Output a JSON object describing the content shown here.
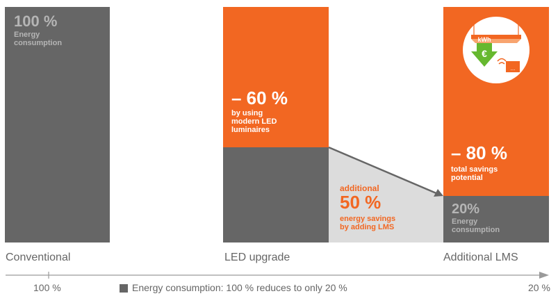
{
  "colors": {
    "bar_gray": "#666666",
    "accent_orange": "#f26722",
    "light_gray": "#dcdcdc",
    "muted_text": "#b5b5b5",
    "axis_text": "#666666"
  },
  "chart_data": {
    "type": "bar",
    "stacked": true,
    "categories": [
      "Conventional",
      "LED upgrade",
      "Additional LMS"
    ],
    "ylim": [
      0,
      100
    ],
    "unit": "%",
    "series": [
      {
        "name": "Energy consumption",
        "values": [
          100,
          40,
          20
        ]
      },
      {
        "values": [
          0,
          60,
          80
        ]
      }
    ],
    "segments": {
      "conventional": {
        "consumption": 100
      },
      "led": {
        "consumption": 40,
        "savings": 60
      },
      "lms": {
        "consumption": 20,
        "savings": 80
      },
      "lms_additional_savings": 50
    },
    "labels": {
      "conventional_value": "100 %",
      "conventional_desc": [
        "Energy",
        "consumption"
      ],
      "led_savings_value": "– 60 %",
      "led_savings_desc": [
        "by using",
        "modern LED",
        "luminaires"
      ],
      "lms_savings_value": "– 80 %",
      "lms_savings_desc": [
        "total savings",
        "potential"
      ],
      "lms_consumption_value": "20%",
      "lms_consumption_desc": [
        "Energy",
        "consumption"
      ],
      "additional_prefix": "additional",
      "additional_value": "50 %",
      "additional_desc": [
        "energy savings",
        "by adding LMS"
      ],
      "icon_kwh": "kWh",
      "icon_euro": "€",
      "icon_dots": "..."
    },
    "axis": {
      "start_label": "100 %",
      "end_label": "20 %",
      "caption": "Energy consumption: 100 % reduces to only 20 %"
    }
  }
}
